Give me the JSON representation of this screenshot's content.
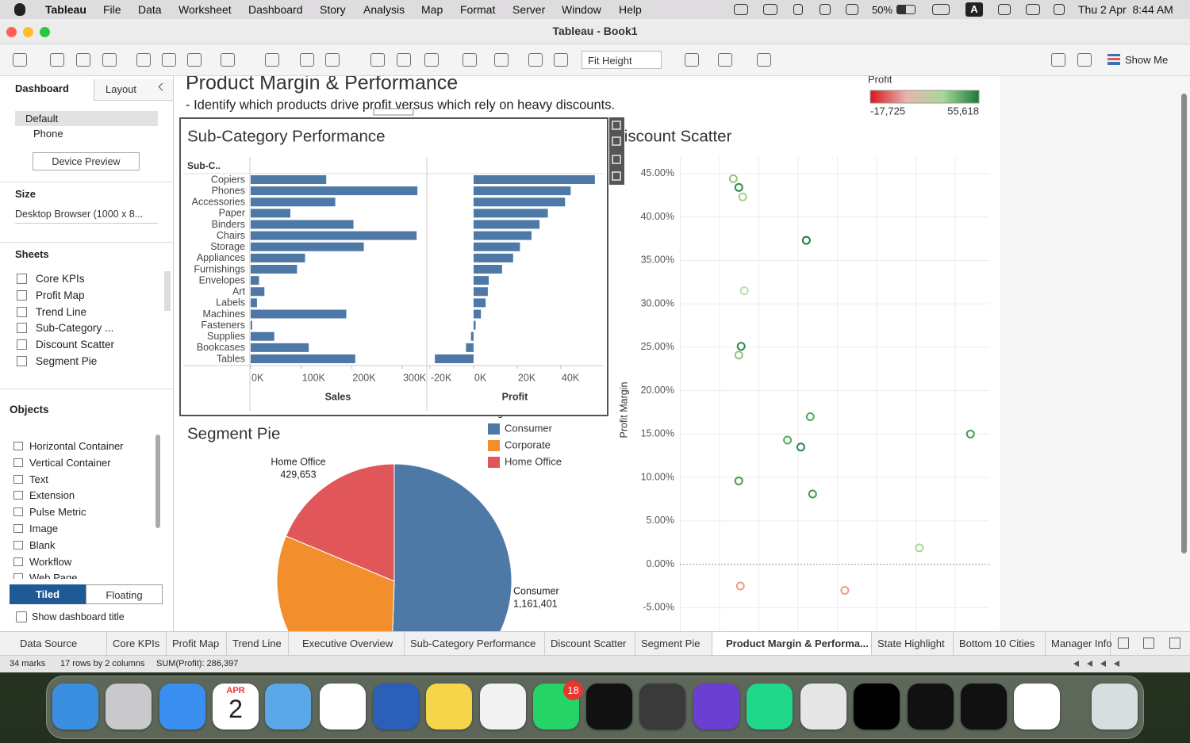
{
  "menubar": {
    "app": "Tableau",
    "items": [
      "File",
      "Data",
      "Worksheet",
      "Dashboard",
      "Story",
      "Analysis",
      "Map",
      "Format",
      "Server",
      "Window",
      "Help"
    ],
    "battery": "50%",
    "input": "A",
    "datetime": "Thu 2 Apr  8:44 AM"
  },
  "window": {
    "title": "Tableau - Book1"
  },
  "toolbar": {
    "fit": "Fit Height",
    "show_me": "Show Me"
  },
  "sidebar": {
    "tabs": [
      "Dashboard",
      "Layout"
    ],
    "devices": [
      "Default",
      "Phone"
    ],
    "device_preview": "Device Preview",
    "size_heading": "Size",
    "size_value": "Desktop Browser (1000 x 8...",
    "sheets_heading": "Sheets",
    "sheets": [
      "Core KPIs",
      "Profit Map",
      "Trend Line",
      "Sub-Category ...",
      "Discount Scatter",
      "Segment Pie"
    ],
    "objects_heading": "Objects",
    "objects": [
      "Horizontal Container",
      "Vertical Container",
      "Text",
      "Extension",
      "Pulse Metric",
      "Image",
      "Blank",
      "Workflow",
      "Web Page"
    ],
    "layout_modes": [
      "Tiled",
      "Floating"
    ],
    "show_title": "Show dashboard title"
  },
  "dashboard": {
    "title": "Product Margin & Performance",
    "subtitle": "- Identify which products drive profit versus which rely on heavy discounts.",
    "legend": {
      "title": "Profit",
      "min": "-17,725",
      "max": "55,618",
      "colors": [
        "#d7191c",
        "#e8b4b0",
        "#a8d898",
        "#1a7a3a"
      ]
    }
  },
  "chart_data": [
    {
      "type": "bar",
      "title": "Sub-Category Performance",
      "header": "Sub-C..",
      "categories": [
        "Copiers",
        "Phones",
        "Accessories",
        "Paper",
        "Binders",
        "Chairs",
        "Storage",
        "Appliances",
        "Furnishings",
        "Envelopes",
        "Art",
        "Labels",
        "Machines",
        "Fasteners",
        "Supplies",
        "Bookcases",
        "Tables"
      ],
      "series": [
        {
          "name": "Sales",
          "color": "#4e79a7",
          "values": [
            149528,
            330007,
            167380,
            78479,
            203413,
            328449,
            223844,
            107532,
            91705,
            16476,
            27119,
            12486,
            189239,
            3024,
            46674,
            114880,
            206966
          ],
          "xlim": [
            0,
            347000
          ],
          "xticks": [
            {
              "value": 0,
              "label": "0K"
            },
            {
              "value": 100000,
              "label": "100K"
            },
            {
              "value": 200000,
              "label": "200K"
            },
            {
              "value": 300000,
              "label": "300K"
            }
          ]
        },
        {
          "name": "Profit",
          "color": "#4e79a7",
          "values": [
            55618,
            44516,
            41937,
            34054,
            30222,
            26590,
            21279,
            18138,
            13059,
            6964,
            6528,
            5546,
            3385,
            949,
            -1189,
            -3473,
            -17725
          ],
          "xlim": [
            -20700,
            59300
          ],
          "xticks": [
            {
              "value": -20000,
              "label": "-20K"
            },
            {
              "value": 0,
              "label": "0K"
            },
            {
              "value": 20000,
              "label": "20K"
            },
            {
              "value": 40000,
              "label": "40K"
            }
          ]
        }
      ]
    },
    {
      "type": "pie",
      "title": "Segment Pie",
      "legend_title": "Segment",
      "categories": [
        "Consumer",
        "Corporate",
        "Home Office"
      ],
      "values": [
        1161401,
        706146,
        429653
      ],
      "value_labels": [
        "1,161,401",
        null,
        "429,653"
      ],
      "colors": [
        "#4e79a7",
        "#f28e2b",
        "#e15759"
      ]
    },
    {
      "type": "scatter",
      "title": "Discount Scatter",
      "ylabel": "Profit Margin",
      "x": [
        0.068,
        0.075,
        0.08,
        0.161,
        0.082,
        0.078,
        0.075,
        0.166,
        0.137,
        0.154,
        0.37,
        0.075,
        0.169,
        0.305,
        0.077,
        0.21
      ],
      "y": [
        44.4,
        43.4,
        42.3,
        37.3,
        31.5,
        25.1,
        24.1,
        17.0,
        14.3,
        13.5,
        15.0,
        9.6,
        8.1,
        1.9,
        -2.5,
        -3.0
      ],
      "colors": [
        "#8cc97a",
        "#2e8b4a",
        "#9fd58a",
        "#1e7a3a",
        "#b8e0a8",
        "#2e8b4a",
        "#8cc97a",
        "#4fae5e",
        "#4fae5e",
        "#2e8b4a",
        "#3f9e50",
        "#3f9e50",
        "#3f9e50",
        "#a8d898",
        "#f09a8a",
        "#f09a8a"
      ],
      "xlim": [
        0,
        0.394
      ],
      "ylim": [
        -7.7,
        46.9
      ],
      "yticks": [
        {
          "value": -5,
          "label": "-5.00%"
        },
        {
          "value": 0,
          "label": "0.00%"
        },
        {
          "value": 5,
          "label": "5.00%"
        },
        {
          "value": 10,
          "label": "10.00%"
        },
        {
          "value": 15,
          "label": "15.00%"
        },
        {
          "value": 20,
          "label": "20.00%"
        },
        {
          "value": 25,
          "label": "25.00%"
        },
        {
          "value": 30,
          "label": "30.00%"
        },
        {
          "value": 35,
          "label": "35.00%"
        },
        {
          "value": 40,
          "label": "40.00%"
        },
        {
          "value": 45,
          "label": "45.00%"
        }
      ],
      "grid": true
    }
  ],
  "tabs": [
    "Data Source",
    "Core KPIs",
    "Profit Map",
    "Trend Line",
    "Executive Overview",
    "Sub-Category Performance",
    "Discount Scatter",
    "Segment Pie",
    "Product Margin & Performa...",
    "State Highlight",
    "Bottom 10 Cities",
    "Manager Info"
  ],
  "status": {
    "marks": "34 marks",
    "rows": "17 rows by 2 columns",
    "sum": "SUM(Profit): 286,397"
  },
  "dock": {
    "calendar_month": "APR",
    "calendar_day": "2",
    "badge": "18"
  }
}
